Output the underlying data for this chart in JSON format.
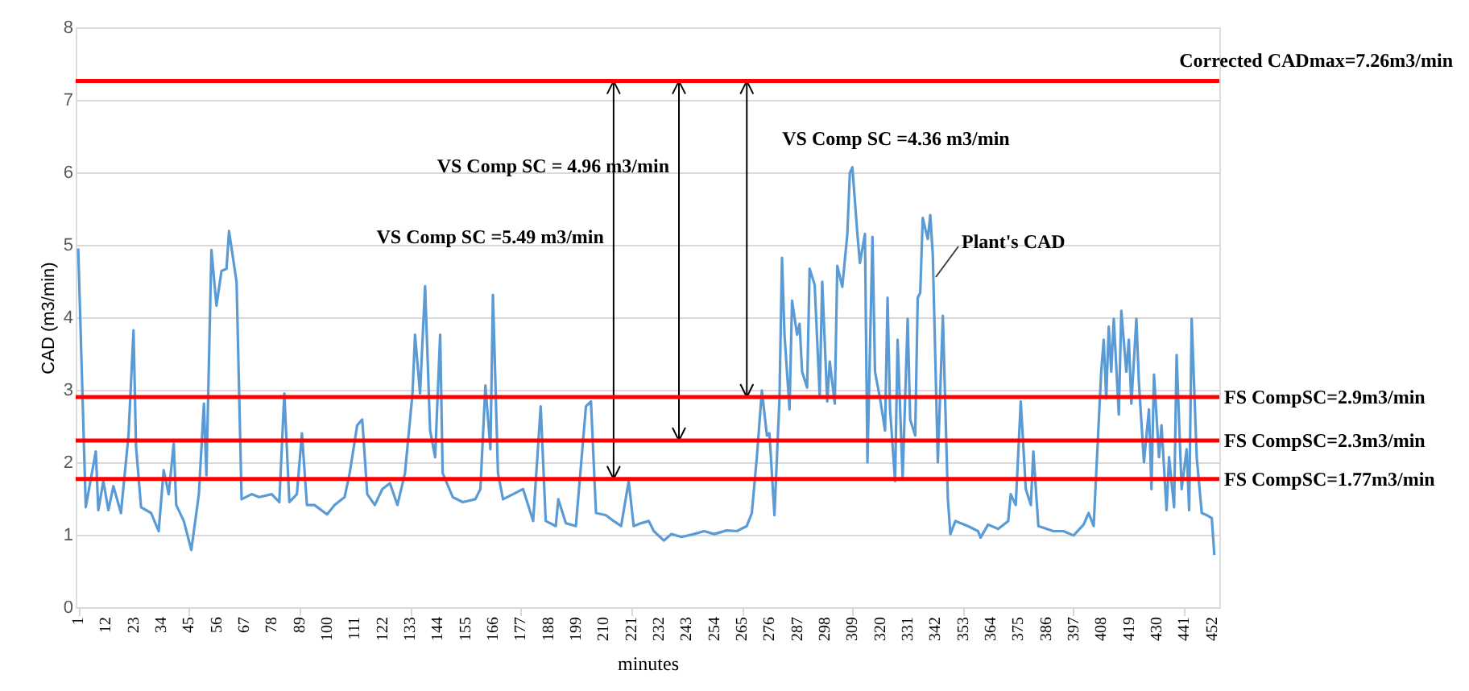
{
  "chart_data": {
    "type": "line",
    "xlabel": "minutes",
    "ylabel": "CAD (m3/min)",
    "xlim": [
      0,
      455
    ],
    "xticks": [
      1,
      12,
      23,
      34,
      45,
      56,
      67,
      78,
      89,
      100,
      111,
      122,
      133,
      144,
      155,
      166,
      177,
      188,
      199,
      210,
      221,
      232,
      243,
      254,
      265,
      276,
      287,
      298,
      309,
      320,
      331,
      342,
      353,
      364,
      375,
      386,
      397,
      408,
      419,
      430,
      441,
      452
    ],
    "ylim": [
      0,
      8
    ],
    "yticks": [
      0,
      1,
      2,
      3,
      4,
      5,
      6,
      7,
      8
    ],
    "grid": "y",
    "marker": "none",
    "line_style": "solid",
    "series": [
      {
        "name": "Plant's CAD",
        "color": "#5b9bd5",
        "x": [
          1,
          4,
          8,
          9,
          11,
          13,
          15,
          18,
          21,
          23,
          24,
          26,
          30,
          33,
          35,
          37,
          39,
          40,
          43,
          46,
          49,
          51,
          52,
          54,
          56,
          58,
          60,
          61,
          64,
          66,
          70,
          73,
          78,
          81,
          83,
          85,
          88,
          90,
          92,
          95,
          100,
          103,
          107,
          109,
          112,
          114,
          116,
          119,
          122,
          125,
          128,
          131,
          134,
          135,
          137,
          139,
          141,
          143,
          145,
          146,
          150,
          154,
          159,
          161,
          163,
          165,
          166,
          168,
          170,
          174,
          178,
          182,
          185,
          187,
          191,
          192,
          195,
          199,
          203,
          205,
          207,
          211,
          214,
          217,
          220,
          222,
          225,
          228,
          230,
          234,
          237,
          241,
          246,
          250,
          254,
          259,
          263,
          267,
          269,
          271,
          273,
          275,
          276,
          278,
          280,
          281,
          282,
          284,
          285,
          287,
          288,
          289,
          291,
          292,
          294,
          296,
          297,
          299,
          300,
          302,
          303,
          305,
          307,
          308,
          309,
          311,
          312,
          314,
          315,
          317,
          318,
          320,
          322,
          323,
          324,
          326,
          327,
          329,
          331,
          332,
          334,
          335,
          336,
          337,
          339,
          340,
          341,
          343,
          345,
          347,
          348,
          350,
          355,
          359,
          360,
          363,
          367,
          371,
          372,
          374,
          376,
          378,
          380,
          381,
          383,
          389,
          393,
          397,
          401,
          403,
          405,
          408,
          409,
          410,
          411,
          412,
          413,
          415,
          416,
          418,
          419,
          420,
          422,
          423,
          425,
          427,
          428,
          429,
          431,
          432,
          434,
          435,
          437,
          438,
          440,
          442,
          443,
          444,
          446,
          448,
          450,
          452,
          453
        ],
        "values": [
          4.95,
          1.38,
          2.15,
          1.34,
          1.74,
          1.34,
          1.67,
          1.3,
          2.37,
          3.82,
          2.22,
          1.38,
          1.3,
          1.05,
          1.89,
          1.56,
          2.26,
          1.41,
          1.19,
          0.79,
          1.56,
          2.81,
          1.82,
          4.93,
          4.16,
          4.64,
          4.67,
          5.19,
          4.49,
          1.49,
          1.56,
          1.52,
          1.56,
          1.45,
          2.95,
          1.45,
          1.56,
          2.4,
          1.41,
          1.41,
          1.28,
          1.41,
          1.52,
          1.85,
          2.51,
          2.59,
          1.56,
          1.41,
          1.63,
          1.71,
          1.41,
          1.85,
          2.95,
          3.76,
          2.95,
          4.43,
          2.44,
          2.07,
          3.76,
          1.85,
          1.52,
          1.45,
          1.49,
          1.63,
          3.06,
          2.18,
          4.31,
          1.85,
          1.49,
          1.56,
          1.63,
          1.19,
          2.77,
          1.19,
          1.12,
          1.49,
          1.16,
          1.12,
          2.77,
          2.84,
          1.3,
          1.27,
          1.19,
          1.12,
          1.74,
          1.12,
          1.16,
          1.19,
          1.05,
          0.92,
          1.01,
          0.97,
          1.01,
          1.05,
          1.01,
          1.06,
          1.05,
          1.12,
          1.3,
          2.07,
          2.99,
          2.37,
          2.4,
          1.27,
          2.88,
          4.82,
          3.76,
          2.73,
          4.23,
          3.76,
          3.91,
          3.25,
          3.03,
          4.67,
          4.45,
          2.92,
          4.49,
          2.84,
          3.39,
          2.81,
          4.71,
          4.42,
          5.15,
          5.99,
          6.07,
          5.15,
          4.75,
          5.15,
          2.0,
          5.11,
          3.25,
          2.88,
          2.44,
          4.27,
          2.73,
          1.74,
          3.69,
          1.78,
          3.98,
          2.59,
          2.37,
          4.27,
          4.34,
          5.37,
          5.08,
          5.41,
          4.86,
          2.0,
          4.02,
          1.49,
          1.01,
          1.19,
          1.12,
          1.05,
          0.96,
          1.14,
          1.08,
          1.19,
          1.56,
          1.41,
          2.84,
          1.63,
          1.41,
          2.15,
          1.12,
          1.05,
          1.05,
          0.99,
          1.14,
          1.3,
          1.12,
          3.25,
          3.69,
          2.88,
          3.87,
          3.25,
          3.98,
          2.66,
          4.09,
          3.25,
          3.69,
          2.81,
          3.98,
          3.1,
          2.0,
          2.73,
          1.63,
          3.21,
          2.07,
          2.51,
          1.34,
          2.07,
          1.38,
          3.48,
          1.63,
          2.18,
          1.34,
          3.98,
          2.07,
          1.3,
          1.27,
          1.23,
          0.72
        ]
      },
      {
        "type": "line",
        "color": "#000000",
        "x": [
          214,
          214
        ],
        "values": [
          1.77,
          7.26
        ]
      },
      {
        "type": "line",
        "color": "#000000",
        "x": [
          240,
          240
        ],
        "values": [
          2.3,
          7.26
        ]
      },
      {
        "type": "line",
        "color": "#000000",
        "x": [
          267,
          267
        ],
        "values": [
          2.9,
          7.26
        ]
      }
    ],
    "ref_lines": [
      {
        "axis": "y",
        "value": 7.26,
        "label": "Corrected CADmax=7.26m3/min",
        "color": "#ff0000"
      },
      {
        "axis": "y",
        "value": 2.9,
        "label": "FS CompSC=2.9m3/min",
        "color": "#ff0000"
      },
      {
        "axis": "y",
        "value": 2.3,
        "label": "FS CompSC=2.3m3/min",
        "color": "#ff0000"
      },
      {
        "axis": "y",
        "value": 1.77,
        "label": "FS CompSC=1.77m3/min",
        "color": "#ff0000"
      }
    ],
    "annotations": [
      "VS Comp SC =5.49 m3/min",
      "VS Comp SC = 4.96 m3/min",
      "VS Comp SC =4.36 m3/min"
    ]
  }
}
